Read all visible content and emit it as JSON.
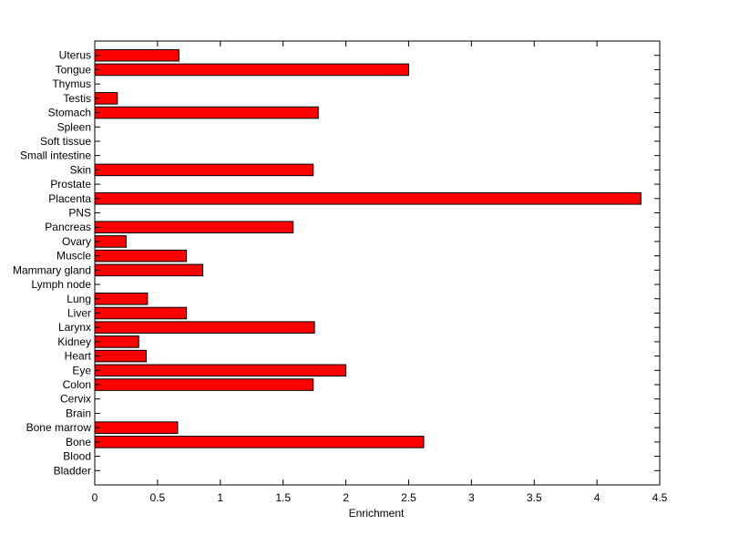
{
  "chart_data": {
    "type": "bar",
    "orientation": "horizontal",
    "xlabel": "Enrichment",
    "ylabel": "",
    "title": "",
    "xlim": [
      0,
      4.5
    ],
    "xticks": [
      "0",
      "0.5",
      "1",
      "1.5",
      "2",
      "2.5",
      "3",
      "3.5",
      "4",
      "4.5"
    ],
    "grid": false,
    "bar_color": "#ff0000",
    "categories": [
      "Bladder",
      "Blood",
      "Bone",
      "Bone marrow",
      "Brain",
      "Cervix",
      "Colon",
      "Eye",
      "Heart",
      "Kidney",
      "Larynx",
      "Liver",
      "Lung",
      "Lymph node",
      "Mammary gland",
      "Muscle",
      "Ovary",
      "Pancreas",
      "PNS",
      "Placenta",
      "Prostate",
      "Skin",
      "Small intestine",
      "Soft tissue",
      "Spleen",
      "Stomach",
      "Testis",
      "Thymus",
      "Tongue",
      "Uterus"
    ],
    "values": [
      0,
      0,
      2.62,
      0.66,
      0,
      0,
      1.74,
      2.0,
      0.41,
      0.35,
      1.75,
      0.73,
      0.42,
      0,
      0.86,
      0.73,
      0.25,
      1.58,
      0,
      4.35,
      0,
      1.74,
      0,
      0,
      0,
      1.78,
      0.18,
      0,
      2.5,
      0.67
    ]
  }
}
